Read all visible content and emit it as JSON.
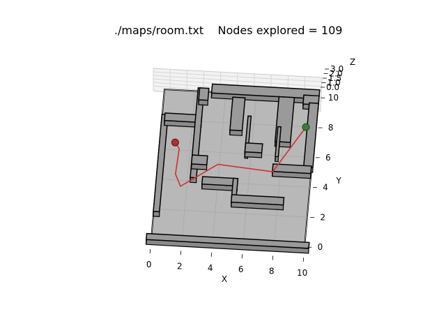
{
  "figure": {
    "title_map": "./maps/room.txt",
    "title_nodes": "Nodes explored = 109"
  },
  "chart_data": {
    "type": "3d-path",
    "xlabel": "X",
    "ylabel": "Y",
    "zlabel": "Z",
    "xlim": [
      0,
      10
    ],
    "ylim": [
      0,
      10
    ],
    "zlim": [
      0,
      3
    ],
    "x_ticks": [
      "0",
      "2",
      "4",
      "6",
      "8",
      "10"
    ],
    "y_ticks": [
      "0",
      "2",
      "4",
      "6",
      "8",
      "10"
    ],
    "z_ticks": [
      "0.0",
      "1.0",
      "1.5",
      "2.0",
      "3.0"
    ],
    "grid": true,
    "start": {
      "x": 1.0,
      "y": 6.5,
      "color": "#b03030"
    },
    "goal": {
      "x": 9.4,
      "y": 8.0,
      "color": "#3a7d3a"
    },
    "path": {
      "color": "#d03030",
      "points": [
        [
          1.0,
          6.5
        ],
        [
          1.3,
          6.1
        ],
        [
          1.2,
          4.4
        ],
        [
          1.6,
          3.6
        ],
        [
          3.9,
          5.2
        ],
        [
          7.5,
          4.9
        ],
        [
          9.4,
          8.0
        ]
      ]
    },
    "floor_color": "#b8b8b8",
    "obstacle_color": "#9a9a9a",
    "obstacles": [
      {
        "name": "left-wall",
        "x": 0.0,
        "y": 1.5,
        "w": 0.4,
        "h": 6.5
      },
      {
        "name": "left-ledge",
        "x": 0.2,
        "y": 7.6,
        "w": 2.4,
        "h": 0.5
      },
      {
        "name": "inner-left-wall",
        "x": 2.2,
        "y": 3.9,
        "w": 0.4,
        "h": 6.0
      },
      {
        "name": "inner-left-stub",
        "x": 2.3,
        "y": 9.1,
        "w": 0.6,
        "h": 0.8
      },
      {
        "name": "top-wall",
        "x": 3.1,
        "y": 9.6,
        "w": 7.0,
        "h": 0.6
      },
      {
        "name": "top-right-corner",
        "x": 9.1,
        "y": 9.2,
        "w": 1.0,
        "h": 0.6
      },
      {
        "name": "center-left-block",
        "x": 4.5,
        "y": 7.2,
        "w": 0.8,
        "h": 2.2
      },
      {
        "name": "center-thin-left",
        "x": 5.6,
        "y": 5.7,
        "w": 0.2,
        "h": 2.5
      },
      {
        "name": "center-small-box",
        "x": 5.6,
        "y": 5.8,
        "w": 1.1,
        "h": 0.6
      },
      {
        "name": "center-right-block",
        "x": 7.5,
        "y": 6.6,
        "w": 1.0,
        "h": 3.0
      },
      {
        "name": "center-thin-right",
        "x": 7.6,
        "y": 5.6,
        "w": 0.2,
        "h": 2.0
      },
      {
        "name": "right-wall",
        "x": 9.5,
        "y": 5.0,
        "w": 0.6,
        "h": 4.3
      },
      {
        "name": "right-shelf",
        "x": 7.5,
        "y": 4.6,
        "w": 2.5,
        "h": 0.5
      },
      {
        "name": "left-small-box",
        "x": 2.2,
        "y": 4.8,
        "w": 1.0,
        "h": 0.6
      },
      {
        "name": "middle-bar",
        "x": 3.0,
        "y": 3.5,
        "w": 2.3,
        "h": 0.5
      },
      {
        "name": "middle-post",
        "x": 5.0,
        "y": 2.8,
        "w": 0.3,
        "h": 1.2
      },
      {
        "name": "lower-bar",
        "x": 5.0,
        "y": 2.4,
        "w": 3.4,
        "h": 0.5
      },
      {
        "name": "bottom-wall",
        "x": -0.3,
        "y": -0.4,
        "w": 10.6,
        "h": 0.4
      }
    ]
  }
}
